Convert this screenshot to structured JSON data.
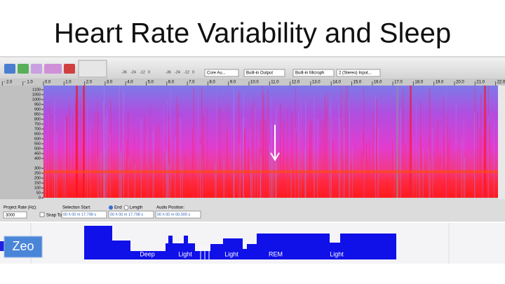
{
  "header": {
    "title": "Heart Rate Variability and Sleep"
  },
  "toolbar": {
    "devices": [
      "Core Au...",
      "Built-in Output",
      "Built-in Microph",
      "2 (Stereo) Input..."
    ],
    "meter_ticks": [
      "-36",
      "-24",
      "-12",
      "0"
    ]
  },
  "timeline": {
    "ticks": [
      "- 2.0",
      "- 1.0",
      "0.0",
      "1.0",
      "2.0",
      "3.0",
      "4.0",
      "5.0",
      "6.0",
      "7.0",
      "8.0",
      "9.0",
      "10.0",
      "11.0",
      "12.0",
      "13.0",
      "14.0",
      "15.0",
      "16.0",
      "17.0",
      "18.0",
      "19.0",
      "20.0",
      "21.0",
      "22.0"
    ]
  },
  "frequency_axis": {
    "labels": [
      1100,
      1050,
      1000,
      950,
      900,
      850,
      800,
      750,
      700,
      650,
      600,
      550,
      500,
      450,
      400,
      300,
      250,
      200,
      150,
      100,
      50,
      0
    ]
  },
  "status_bar": {
    "project_rate_label": "Project Rate (Hz):",
    "project_rate": "3000",
    "snap_to": "Snap To",
    "selection_start_label": "Selection Start:",
    "end": "End",
    "length": "Length",
    "audio_position_label": "Audio Position:",
    "selection_start": "00 h 00 m 17.798 s",
    "selection_end": "00 h 00 m 17.798 s",
    "audio_position": "00 h 00 m 00.000 s"
  },
  "zeo": {
    "label": "Zeo",
    "stages": [
      "Deep",
      "Light",
      "Light",
      "REM",
      "Light"
    ]
  }
}
